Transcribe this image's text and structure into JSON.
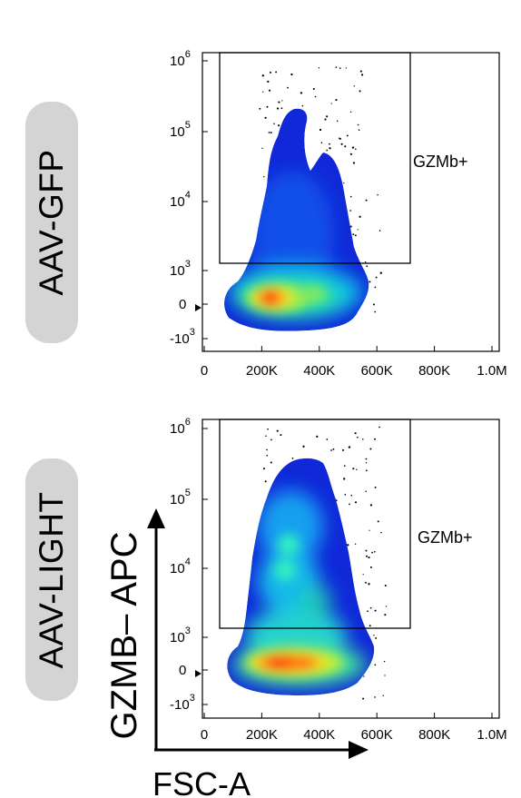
{
  "sample_labels": [
    "AAV-GFP",
    "AAV-LIGHT"
  ],
  "gate_label": "GZMb+",
  "axis_titles": {
    "y": "GZMB– APC",
    "x": "FSC-A"
  },
  "colors": {
    "density_low": "#1030e0",
    "density_mid": "#10d8d0",
    "density_high": "#ff1010",
    "gate": "#000000"
  },
  "chart_data": [
    {
      "type": "scatter",
      "subtype": "flow-cytometry-density",
      "panel": "AAV-GFP",
      "x_ticks": [
        "0",
        "200K",
        "400K",
        "600K",
        "800K",
        "1.0M"
      ],
      "y_ticks": [
        {
          "base": "-10",
          "exp": "3"
        },
        {
          "base": "0",
          "exp": ""
        },
        {
          "base": "10",
          "exp": "3"
        },
        {
          "base": "10",
          "exp": "4"
        },
        {
          "base": "10",
          "exp": "5"
        },
        {
          "base": "10",
          "exp": "6"
        }
      ],
      "xlim": [
        0,
        1000000
      ],
      "y_scale": "biexponential",
      "gate": {
        "label": "GZMb+",
        "x_range": [
          60000,
          720000
        ],
        "y_range": [
          1000,
          1000000
        ]
      },
      "densest_point": {
        "x": 240000,
        "y": 0
      }
    },
    {
      "type": "scatter",
      "subtype": "flow-cytometry-density",
      "panel": "AAV-LIGHT",
      "x_ticks": [
        "0",
        "200K",
        "400K",
        "600K",
        "800K",
        "1.0M"
      ],
      "y_ticks": [
        {
          "base": "-10",
          "exp": "3"
        },
        {
          "base": "0",
          "exp": ""
        },
        {
          "base": "10",
          "exp": "3"
        },
        {
          "base": "10",
          "exp": "4"
        },
        {
          "base": "10",
          "exp": "5"
        },
        {
          "base": "10",
          "exp": "6"
        }
      ],
      "xlim": [
        0,
        1000000
      ],
      "y_scale": "biexponential",
      "gate": {
        "label": "GZMb+",
        "x_range": [
          60000,
          720000
        ],
        "y_range": [
          1000,
          1000000
        ]
      },
      "densest_point": {
        "x": 250000,
        "y": 0
      }
    }
  ]
}
